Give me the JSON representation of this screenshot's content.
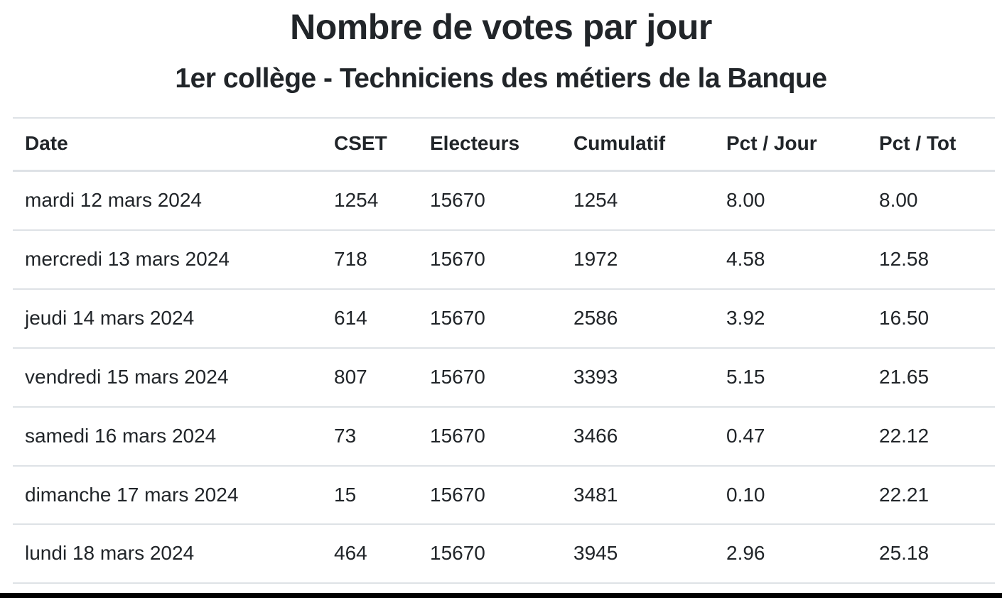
{
  "chart_data": {
    "type": "table",
    "title": "Nombre de votes par jour",
    "subtitle": "1er collège - Techniciens des métiers de la Banque",
    "columns": [
      "Date",
      "CSET",
      "Electeurs",
      "Cumulatif",
      "Pct / Jour",
      "Pct / Tot"
    ],
    "rows": [
      [
        "mardi 12 mars 2024",
        "1254",
        "15670",
        "1254",
        "8.00",
        "8.00"
      ],
      [
        "mercredi 13 mars 2024",
        "718",
        "15670",
        "1972",
        "4.58",
        "12.58"
      ],
      [
        "jeudi 14 mars 2024",
        "614",
        "15670",
        "2586",
        "3.92",
        "16.50"
      ],
      [
        "vendredi 15 mars 2024",
        "807",
        "15670",
        "3393",
        "5.15",
        "21.65"
      ],
      [
        "samedi 16 mars 2024",
        "73",
        "15670",
        "3466",
        "0.47",
        "22.12"
      ],
      [
        "dimanche 17 mars 2024",
        "15",
        "15670",
        "3481",
        "0.10",
        "22.21"
      ],
      [
        "lundi 18 mars 2024",
        "464",
        "15670",
        "3945",
        "2.96",
        "25.18"
      ]
    ],
    "layout": {
      "grid": "horizontal row separators only",
      "header_position": "top",
      "alignment": "left"
    }
  },
  "colors": {
    "text": "#212529",
    "border": "#dee2e6",
    "background": "#ffffff",
    "bottom_bar": "#000000"
  }
}
